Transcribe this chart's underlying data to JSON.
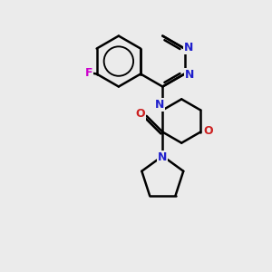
{
  "background_color": "#ebebeb",
  "bond_color": "#000000",
  "N_color": "#2020cc",
  "O_color": "#cc2020",
  "F_color": "#cc00cc",
  "bond_width": 1.8,
  "figsize": [
    3.0,
    3.0
  ],
  "dpi": 100,
  "xlim": [
    0,
    10
  ],
  "ylim": [
    0,
    10
  ]
}
